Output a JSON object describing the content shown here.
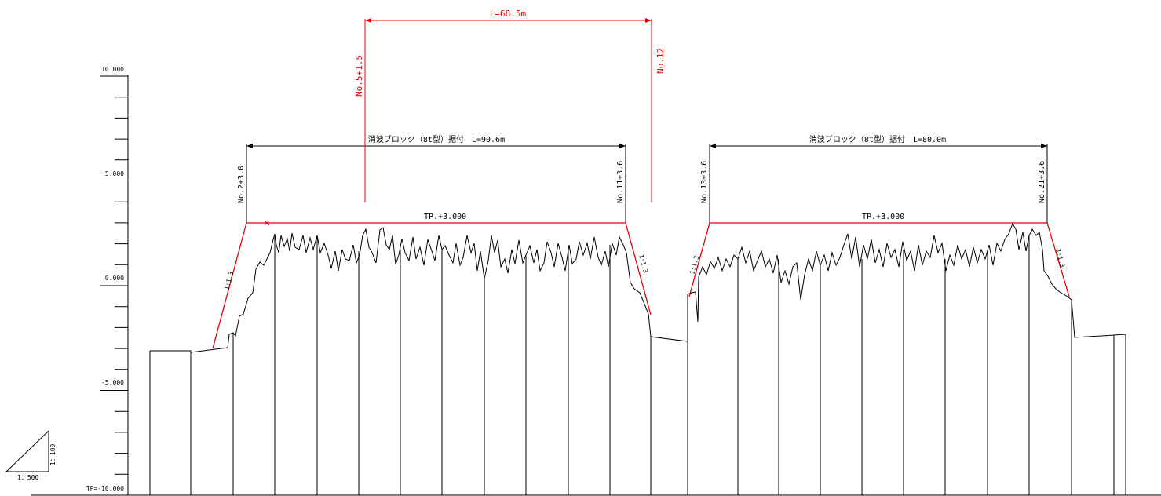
{
  "colors": {
    "design": "#e60000",
    "ground": "#000000"
  },
  "axis": {
    "labels": [
      "10.000",
      "5.000",
      "0.000",
      "-5.000",
      "TP=-10.000"
    ],
    "ticks": [
      10,
      9,
      8,
      7,
      6,
      5,
      4,
      3,
      2,
      1,
      0,
      -1,
      -2,
      -3,
      -4,
      -5,
      -6,
      -7,
      -8,
      -9,
      -10
    ]
  },
  "top_dimension": {
    "label": "L=68.5m",
    "left_station": "No.5+1.5",
    "right_station": "No.12"
  },
  "sections": [
    {
      "block_label": "消波ブロック（8t型）据付　L=90.6m",
      "left_station": "No.2+3.0",
      "right_station": "No.11+3.6",
      "crest_label": "TP.+3.000",
      "left_slope": "1:1.3",
      "right_slope": "1:1.3"
    },
    {
      "block_label": "消波ブロック（8t型）据付　L=80.0m",
      "left_station": "No.13+3.6",
      "right_station": "No.21+3.6",
      "crest_label": "TP.+3.000",
      "left_slope": "1:1.3",
      "right_slope": "1:1.3"
    }
  ],
  "scale": {
    "horizontal": "1：500",
    "vertical": "1：100"
  }
}
